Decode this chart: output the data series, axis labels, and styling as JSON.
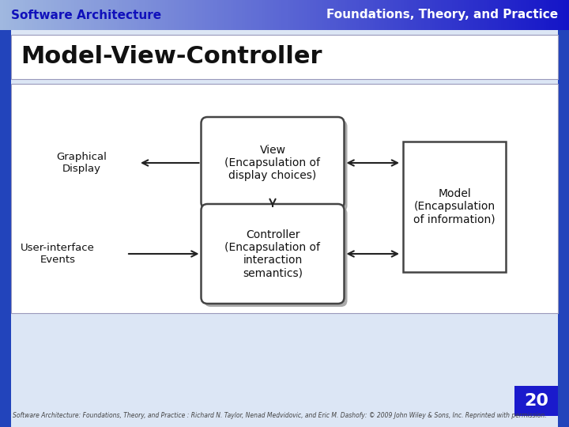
{
  "header_left": "Software Architecture",
  "header_right": "Foundations, Theory, and Practice",
  "title": "Model-View-Controller",
  "page_number": "20",
  "footer": "Software Architecture: Foundations, Theory, and Practice : Richard N. Taylor, Nenad Medvidovic, and Eric M. Dashofy: © 2009 John Wiley & Sons, Inc. Reprinted with permission.",
  "slide_bg": "#ccd8ec",
  "content_bg": "#ffffff",
  "box_border": "#444444",
  "arrow_color": "#222222",
  "view_label": "View\n(Encapsulation of\ndisplay choices)",
  "controller_label": "Controller\n(Encapsulation of\ninteraction\nsemantics)",
  "model_label": "Model\n(Encapsulation\nof information)",
  "graphical_display_label": "Graphical\nDisplay",
  "user_interface_label": "User-interface\nEvents"
}
